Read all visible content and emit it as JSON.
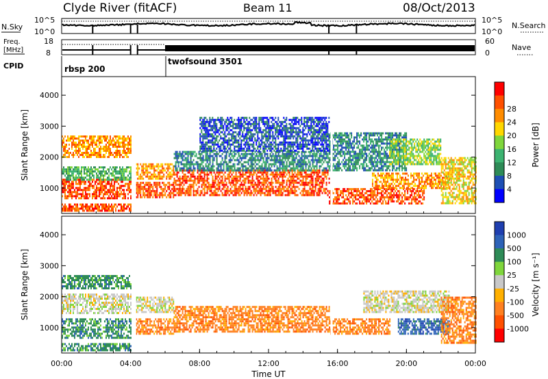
{
  "header": {
    "station": "Clyde River (fitACF)",
    "beam": "Beam 11",
    "date": "08/Oct/2013"
  },
  "strips": {
    "noise": {
      "left_label": "N.Sky",
      "left_ticks": [
        "10^5",
        "10^0"
      ],
      "right_ticks": [
        "10^5",
        "10^0"
      ],
      "right_label": "N.Search"
    },
    "freq": {
      "left_label_top": "Freq.",
      "left_label_unit": "[MHz]",
      "left_ticks": [
        "18",
        "8"
      ],
      "right_ticks": [
        "60",
        "0"
      ],
      "right_label": "Nave"
    },
    "cpid": {
      "label": "CPID",
      "segments": [
        {
          "name": "rbsp 200",
          "start_ut": 0.0
        },
        {
          "name": "twofsound 3501",
          "start_ut": 6.0
        }
      ]
    }
  },
  "colors": {
    "power": [
      "#0000ff",
      "#1e4fb4",
      "#2e8b57",
      "#3cb371",
      "#7fd63c",
      "#ffd700",
      "#ff8c00",
      "#ff5000",
      "#ff0000"
    ],
    "velocity": [
      "#1f3fb0",
      "#2e63b8",
      "#2e8b57",
      "#7fd63c",
      "#c8c8c8",
      "#ffb000",
      "#ff8020",
      "#ff5000",
      "#ff0000"
    ]
  },
  "chart_data": [
    {
      "type": "heatmap",
      "name": "power",
      "ylabel": "Slant Range [km]",
      "xlim": [
        0,
        24
      ],
      "ylim": [
        180,
        4600
      ],
      "yticks": [
        1000,
        2000,
        3000,
        4000
      ],
      "colorbar": {
        "label": "Power [dB]",
        "ticks": [
          "4",
          "8",
          "12",
          "16",
          "20",
          "24",
          "28"
        ],
        "range": [
          0,
          32
        ]
      },
      "bands": [
        {
          "x": [
            0.0,
            4.0
          ],
          "y": [
            700,
            1300
          ],
          "level": 28
        },
        {
          "x": [
            0.0,
            4.0
          ],
          "y": [
            1300,
            1700
          ],
          "level": 12
        },
        {
          "x": [
            0.0,
            4.0
          ],
          "y": [
            2000,
            2700
          ],
          "level": 24
        },
        {
          "x": [
            0.0,
            4.0
          ],
          "y": [
            300,
            500
          ],
          "level": 28
        },
        {
          "x": [
            4.3,
            6.5
          ],
          "y": [
            700,
            1200
          ],
          "level": 28
        },
        {
          "x": [
            4.3,
            6.5
          ],
          "y": [
            1300,
            1800
          ],
          "level": 24
        },
        {
          "x": [
            6.5,
            15.5
          ],
          "y": [
            800,
            1600
          ],
          "level": 28
        },
        {
          "x": [
            6.5,
            15.5
          ],
          "y": [
            1600,
            2200
          ],
          "level": 8
        },
        {
          "x": [
            8.0,
            15.5
          ],
          "y": [
            2200,
            3300
          ],
          "level": 4
        },
        {
          "x": [
            15.5,
            21.0
          ],
          "y": [
            500,
            1000
          ],
          "level": 28
        },
        {
          "x": [
            15.5,
            20.0
          ],
          "y": [
            1600,
            2800
          ],
          "level": 8
        },
        {
          "x": [
            18.0,
            22.5
          ],
          "y": [
            1000,
            1500
          ],
          "level": 24
        },
        {
          "x": [
            19.0,
            22.0
          ],
          "y": [
            1800,
            2600
          ],
          "level": 16
        },
        {
          "x": [
            22.0,
            24.0
          ],
          "y": [
            500,
            2000
          ],
          "level": 20
        }
      ]
    },
    {
      "type": "heatmap",
      "name": "velocity",
      "ylabel": "Slant Range [km]",
      "xlabel": "Time UT",
      "xlim": [
        0,
        24
      ],
      "ylim": [
        180,
        4600
      ],
      "xticks": [
        "00:00",
        "04:00",
        "08:00",
        "12:00",
        "16:00",
        "20:00",
        "00:00"
      ],
      "yticks": [
        1000,
        2000,
        3000,
        4000
      ],
      "colorbar": {
        "label": "Velocity [m s⁻¹]",
        "ticks": [
          "1000",
          "500",
          "100",
          "25",
          "-25",
          "-100",
          "-500",
          "-1000"
        ]
      },
      "bands": [
        {
          "x": [
            0.0,
            4.0
          ],
          "y": [
            700,
            1300
          ],
          "v": 100
        },
        {
          "x": [
            0.0,
            4.0
          ],
          "y": [
            1500,
            2100
          ],
          "v": 0
        },
        {
          "x": [
            0.0,
            4.0
          ],
          "y": [
            2300,
            2700
          ],
          "v": 100
        },
        {
          "x": [
            0.0,
            4.0
          ],
          "y": [
            300,
            500
          ],
          "v": 100
        },
        {
          "x": [
            4.3,
            6.5
          ],
          "y": [
            800,
            1300
          ],
          "v": -150
        },
        {
          "x": [
            4.3,
            6.5
          ],
          "y": [
            1500,
            2000
          ],
          "v": 0
        },
        {
          "x": [
            6.5,
            15.5
          ],
          "y": [
            900,
            1700
          ],
          "v": -200
        },
        {
          "x": [
            15.5,
            19.0
          ],
          "y": [
            800,
            1300
          ],
          "v": -200
        },
        {
          "x": [
            17.5,
            22.5
          ],
          "y": [
            1500,
            2200
          ],
          "v": 0
        },
        {
          "x": [
            19.5,
            22.5
          ],
          "y": [
            800,
            1300
          ],
          "v": 600
        },
        {
          "x": [
            22.0,
            24.0
          ],
          "y": [
            500,
            2000
          ],
          "v": -400
        }
      ]
    }
  ]
}
